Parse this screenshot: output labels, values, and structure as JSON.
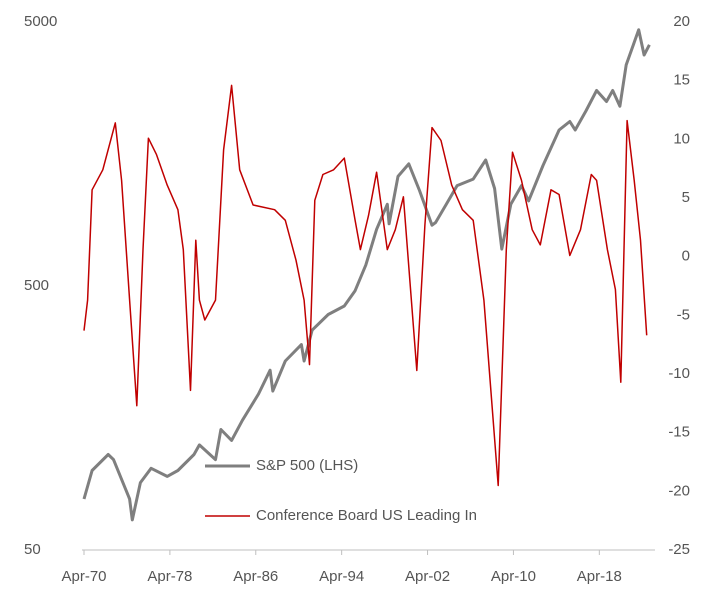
{
  "chart_data": {
    "type": "line",
    "xlim": [
      "1970-04",
      "2023-04"
    ],
    "xticks": [
      {
        "value": "1970-04",
        "label": "Apr-70"
      },
      {
        "value": "1978-04",
        "label": "Apr-78"
      },
      {
        "value": "1986-04",
        "label": "Apr-86"
      },
      {
        "value": "1994-04",
        "label": "Apr-94"
      },
      {
        "value": "2002-04",
        "label": "Apr-02"
      },
      {
        "value": "2010-04",
        "label": "Apr-10"
      },
      {
        "value": "2018-04",
        "label": "Apr-18"
      }
    ],
    "ylim": [
      50,
      5000
    ],
    "yticks": [
      50,
      500,
      5000
    ],
    "log_y": true,
    "y2lim": [
      -25,
      20
    ],
    "y2ticks": [
      -25,
      -20,
      -15,
      -10,
      -5,
      0,
      5,
      10,
      15,
      20
    ],
    "grid": false,
    "legend": "lower center",
    "series": [
      {
        "name": "S&P 500 (LHS)",
        "color": "#7f7f7f",
        "x": [
          "1970-04",
          "1971-01",
          "1972-07",
          "1973-01",
          "1974-07",
          "1974-10",
          "1975-07",
          "1976-07",
          "1978-01",
          "1979-01",
          "1980-07",
          "1981-01",
          "1982-07",
          "1983-01",
          "1984-01",
          "1985-01",
          "1986-07",
          "1987-08",
          "1987-11",
          "1989-01",
          "1990-07",
          "1990-10",
          "1991-07",
          "1993-01",
          "1994-07",
          "1995-07",
          "1996-07",
          "1997-07",
          "1998-07",
          "1998-09",
          "1999-07",
          "2000-07",
          "2001-07",
          "2002-09",
          "2003-01",
          "2004-01",
          "2005-01",
          "2006-07",
          "2007-09",
          "2008-07",
          "2009-03",
          "2010-01",
          "2011-01",
          "2011-09",
          "2013-01",
          "2014-07",
          "2015-07",
          "2016-01",
          "2017-01",
          "2018-01",
          "2018-12",
          "2019-07",
          "2020-03",
          "2020-10",
          "2021-12",
          "2022-06",
          "2022-12"
        ],
        "values": [
          78,
          100,
          115,
          110,
          78,
          65,
          90,
          102,
          95,
          100,
          115,
          125,
          110,
          143,
          130,
          155,
          195,
          240,
          200,
          260,
          300,
          260,
          340,
          390,
          420,
          480,
          600,
          820,
          1020,
          860,
          1300,
          1450,
          1150,
          850,
          870,
          1020,
          1200,
          1270,
          1500,
          1170,
          690,
          1020,
          1200,
          1050,
          1430,
          1950,
          2100,
          1950,
          2300,
          2750,
          2500,
          2750,
          2400,
          3440,
          4670,
          3750,
          4100
        ]
      },
      {
        "name": "Conference Board US Leading In",
        "color": "#c00000",
        "axis": "y2",
        "x": [
          "1970-04",
          "1970-08",
          "1971-01",
          "1972-01",
          "1973-03",
          "1973-10",
          "1974-07",
          "1975-03",
          "1975-10",
          "1976-04",
          "1977-01",
          "1978-01",
          "1979-01",
          "1979-07",
          "1980-03",
          "1980-09",
          "1981-01",
          "1981-07",
          "1982-07",
          "1983-04",
          "1984-01",
          "1984-10",
          "1986-01",
          "1988-01",
          "1989-01",
          "1990-01",
          "1990-10",
          "1991-04",
          "1991-10",
          "1992-07",
          "1993-07",
          "1994-07",
          "1995-07",
          "1996-01",
          "1996-10",
          "1997-07",
          "1998-07",
          "1999-04",
          "2000-01",
          "2001-04",
          "2002-01",
          "2002-09",
          "2003-07",
          "2004-07",
          "2005-07",
          "2006-07",
          "2007-07",
          "2008-11",
          "2009-08",
          "2010-03",
          "2011-01",
          "2012-01",
          "2012-10",
          "2013-10",
          "2014-07",
          "2015-07",
          "2016-07",
          "2017-07",
          "2018-01",
          "2019-01",
          "2019-10",
          "2020-04",
          "2020-11",
          "2021-07",
          "2022-02",
          "2022-09"
        ],
        "values": [
          -6.3,
          -3.7,
          5.7,
          7.4,
          11.4,
          6.5,
          -3.7,
          -12.7,
          0.6,
          10.1,
          8.7,
          6.1,
          4,
          0.6,
          -11.4,
          1.4,
          -3.7,
          -5.4,
          -3.7,
          9.1,
          14.6,
          7.4,
          4.4,
          4,
          3.1,
          -0.3,
          -3.7,
          -9.2,
          4.8,
          7,
          7.4,
          8.4,
          3.1,
          0.6,
          3.5,
          7.2,
          0.6,
          2.3,
          5.1,
          -9.7,
          2.7,
          11,
          9.9,
          6.1,
          4,
          3.1,
          -3.7,
          -19.5,
          0.6,
          8.9,
          6.5,
          2.3,
          1,
          5.7,
          5.3,
          0.1,
          2.3,
          7,
          6.5,
          0.6,
          -2.8,
          -10.7,
          11.6,
          6.5,
          1.4,
          -6.7
        ]
      }
    ]
  }
}
